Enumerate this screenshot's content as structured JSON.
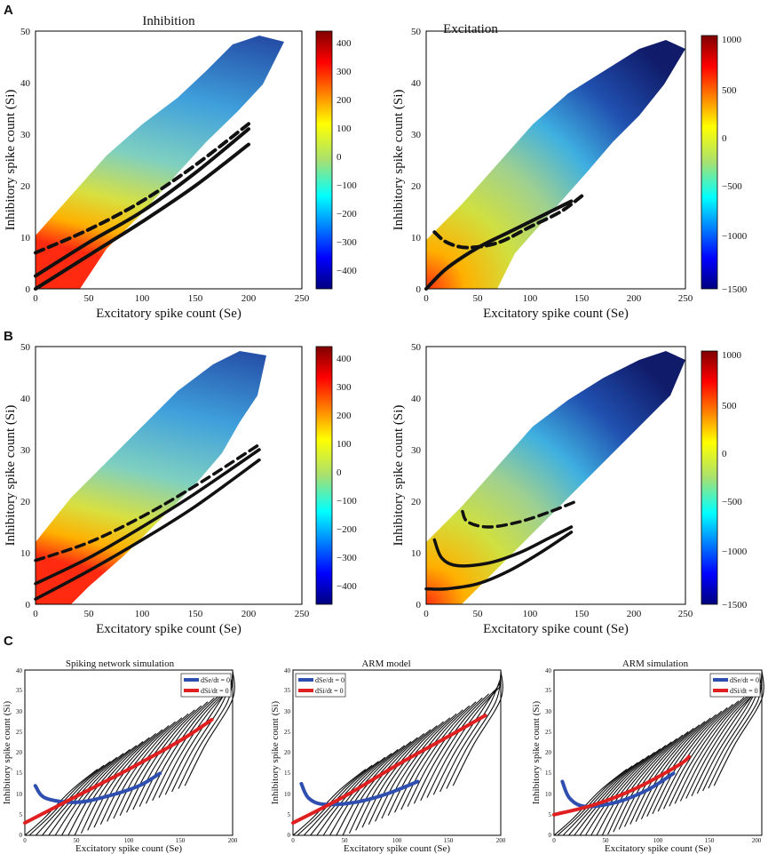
{
  "panel_labels": [
    "A",
    "B",
    "C"
  ],
  "chart_data": [
    {
      "id": "A1",
      "type": "heatmap",
      "title": "Inhibition",
      "xlabel": "Excitatory spike count (Se)",
      "ylabel": "Inhibitory spike count (Si)",
      "xlim": [
        0,
        250
      ],
      "ylim": [
        0,
        50
      ],
      "xticks": [
        "0",
        "50",
        "100",
        "150",
        "200",
        "250"
      ],
      "yticks": [
        "0",
        "10",
        "20",
        "30",
        "40",
        "50"
      ],
      "colorbar": {
        "min": -450,
        "max": 450,
        "ticks": [
          "400",
          "300",
          "200",
          "100",
          "0",
          "−100",
          "−200",
          "−300",
          "−400"
        ]
      },
      "fill": "warm-low",
      "lines": [
        {
          "style": "solid",
          "points": [
            [
              0,
              2.5
            ],
            [
              50,
              9
            ],
            [
              100,
              15
            ],
            [
              150,
              22.5
            ],
            [
              200,
              31
            ]
          ]
        },
        {
          "style": "solid",
          "points": [
            [
              0,
              0
            ],
            [
              50,
              6.5
            ],
            [
              100,
              13
            ],
            [
              150,
              20
            ],
            [
              200,
              28
            ]
          ]
        },
        {
          "style": "dashed",
          "points": [
            [
              0,
              7
            ],
            [
              50,
              11.5
            ],
            [
              100,
              17
            ],
            [
              150,
              24
            ],
            [
              200,
              32
            ]
          ]
        }
      ]
    },
    {
      "id": "A2",
      "type": "heatmap",
      "title": "Excitation",
      "xlabel": "Excitatory spike count (Se)",
      "ylabel": "Inhibitory spike count (Si)",
      "xlim": [
        0,
        250
      ],
      "ylim": [
        0,
        50
      ],
      "xticks": [
        "0",
        "50",
        "100",
        "150",
        "200",
        "250"
      ],
      "yticks": [
        "0",
        "10",
        "20",
        "30",
        "40",
        "50"
      ],
      "colorbar": {
        "min": -1500,
        "max": 1000,
        "ticks": [
          "1000",
          "500",
          "0",
          "−500",
          "−1000",
          "−1500"
        ]
      },
      "fill": "warm-corner",
      "lines": [
        {
          "style": "dashed",
          "points": [
            [
              8,
              11
            ],
            [
              20,
              9
            ],
            [
              40,
              8
            ],
            [
              70,
              9
            ],
            [
              100,
              12
            ],
            [
              130,
              15
            ],
            [
              150,
              18
            ]
          ]
        },
        {
          "style": "solid",
          "points": [
            [
              0,
              0
            ],
            [
              20,
              4
            ],
            [
              50,
              8
            ],
            [
              80,
              11
            ],
            [
              110,
              14
            ],
            [
              140,
              17
            ]
          ]
        }
      ]
    },
    {
      "id": "B1",
      "type": "heatmap",
      "title": "",
      "xlabel": "Excitatory spike count (Se)",
      "ylabel": "Inhibitory spike count (Si)",
      "xlim": [
        0,
        250
      ],
      "ylim": [
        0,
        50
      ],
      "xticks": [
        "0",
        "50",
        "100",
        "150",
        "200",
        "250"
      ],
      "yticks": [
        "0",
        "10",
        "20",
        "30",
        "40",
        "50"
      ],
      "colorbar": {
        "min": -450,
        "max": 450,
        "ticks": [
          "400",
          "300",
          "200",
          "100",
          "0",
          "−100",
          "−200",
          "−300",
          "−400"
        ]
      },
      "fill": "warm-low",
      "lines": [
        {
          "style": "dashed",
          "points": [
            [
              0,
              8.5
            ],
            [
              50,
              12
            ],
            [
              100,
              17
            ],
            [
              150,
              23
            ],
            [
              210,
              31
            ]
          ]
        },
        {
          "style": "solid",
          "points": [
            [
              0,
              4
            ],
            [
              50,
              9
            ],
            [
              100,
              15
            ],
            [
              150,
              21.5
            ],
            [
              210,
              30
            ]
          ]
        },
        {
          "style": "solid",
          "points": [
            [
              0,
              1
            ],
            [
              50,
              6.5
            ],
            [
              100,
              12.5
            ],
            [
              150,
              19
            ],
            [
              210,
              28
            ]
          ]
        }
      ]
    },
    {
      "id": "B2",
      "type": "heatmap",
      "title": "",
      "xlabel": "Excitatory spike count (Se)",
      "ylabel": "Inhibitory spike count (Si)",
      "xlim": [
        0,
        250
      ],
      "ylim": [
        0,
        50
      ],
      "xticks": [
        "0",
        "50",
        "100",
        "150",
        "200",
        "250"
      ],
      "yticks": [
        "0",
        "10",
        "20",
        "30",
        "40",
        "50"
      ],
      "colorbar": {
        "min": -1500,
        "max": 1000,
        "ticks": [
          "1000",
          "500",
          "0",
          "−500",
          "−1000",
          "−1500"
        ]
      },
      "fill": "warm-corner",
      "lines": [
        {
          "style": "dashed",
          "points": [
            [
              35,
              18
            ],
            [
              40,
              16
            ],
            [
              60,
              15
            ],
            [
              90,
              16
            ],
            [
              120,
              18
            ],
            [
              145,
              20
            ]
          ]
        },
        {
          "style": "solid",
          "points": [
            [
              8,
              12.5
            ],
            [
              15,
              9
            ],
            [
              30,
              7.5
            ],
            [
              60,
              8
            ],
            [
              90,
              10
            ],
            [
              120,
              13
            ],
            [
              140,
              15
            ]
          ]
        },
        {
          "style": "solid",
          "points": [
            [
              0,
              3
            ],
            [
              20,
              3
            ],
            [
              50,
              4
            ],
            [
              80,
              6.5
            ],
            [
              110,
              10
            ],
            [
              140,
              14
            ]
          ]
        }
      ]
    },
    {
      "id": "C1",
      "type": "line",
      "title": "Spiking network simulation",
      "xlabel": "Excitatory spike count (Se)",
      "ylabel": "Inhibitory spike count (Si)",
      "xlim": [
        0,
        200
      ],
      "ylim": [
        0,
        40
      ],
      "xticks": [
        "0",
        "50",
        "100",
        "150",
        "200"
      ],
      "yticks": [
        "0",
        "5",
        "10",
        "15",
        "20",
        "25",
        "30",
        "35",
        "40"
      ],
      "legend": {
        "position": "top-right",
        "entries": [
          "dSe/dt = 0",
          "dSi/dt = 0"
        ]
      },
      "series": [
        {
          "name": "dSe/dt = 0",
          "color": "#2f4fb0",
          "points": [
            [
              10,
              12
            ],
            [
              20,
              9
            ],
            [
              50,
              8
            ],
            [
              80,
              9.5
            ],
            [
              110,
              12
            ],
            [
              130,
              15
            ]
          ]
        },
        {
          "name": "dSi/dt = 0",
          "color": "#e02020",
          "points": [
            [
              0,
              3
            ],
            [
              50,
              9.5
            ],
            [
              100,
              16
            ],
            [
              150,
              23
            ],
            [
              180,
              28
            ]
          ]
        }
      ],
      "flow_lines": 26
    },
    {
      "id": "C2",
      "type": "line",
      "title": "ARM model",
      "xlabel": "Excitatory spike count (Se)",
      "ylabel": "Inhibitory spike count (Si)",
      "xlim": [
        0,
        200
      ],
      "ylim": [
        0,
        40
      ],
      "xticks": [
        "0",
        "50",
        "100",
        "150",
        "200"
      ],
      "yticks": [
        "0",
        "5",
        "10",
        "15",
        "20",
        "25",
        "30",
        "35",
        "40"
      ],
      "legend": {
        "position": "top-left",
        "entries": [
          "dSe/dt = 0",
          "dSi/dt = 0"
        ]
      },
      "series": [
        {
          "name": "dSe/dt = 0",
          "color": "#2f4fb0",
          "points": [
            [
              8,
              12.5
            ],
            [
              15,
              9
            ],
            [
              30,
              7.5
            ],
            [
              60,
              8
            ],
            [
              90,
              10
            ],
            [
              120,
              13
            ]
          ]
        },
        {
          "name": "dSi/dt = 0",
          "color": "#e02020",
          "points": [
            [
              0,
              3
            ],
            [
              50,
              9.5
            ],
            [
              100,
              17
            ],
            [
              150,
              24
            ],
            [
              185,
              29
            ]
          ]
        }
      ],
      "flow_lines": 26
    },
    {
      "id": "C3",
      "type": "line",
      "title": "ARM simulation",
      "xlabel": "Excitatory spike count (Se)",
      "ylabel": "Inhibitory spike count (Si)",
      "xlim": [
        0,
        200
      ],
      "ylim": [
        0,
        40
      ],
      "xticks": [
        "0",
        "50",
        "100",
        "150",
        "200"
      ],
      "yticks": [
        "0",
        "5",
        "10",
        "15",
        "20",
        "25",
        "30",
        "35",
        "40"
      ],
      "legend": {
        "position": "top-right",
        "entries": [
          "dSe/dt = 0",
          "dSi/dt = 0"
        ]
      },
      "series": [
        {
          "name": "dSe/dt = 0",
          "color": "#2f4fb0",
          "points": [
            [
              8,
              13
            ],
            [
              15,
              9
            ],
            [
              30,
              7
            ],
            [
              60,
              8
            ],
            [
              90,
              11
            ],
            [
              115,
              15
            ]
          ]
        },
        {
          "name": "dSi/dt = 0",
          "color": "#e02020",
          "points": [
            [
              0,
              5
            ],
            [
              40,
              7.5
            ],
            [
              80,
              11.5
            ],
            [
              120,
              17
            ],
            [
              130,
              19
            ]
          ]
        }
      ],
      "flow_lines": 30
    }
  ]
}
